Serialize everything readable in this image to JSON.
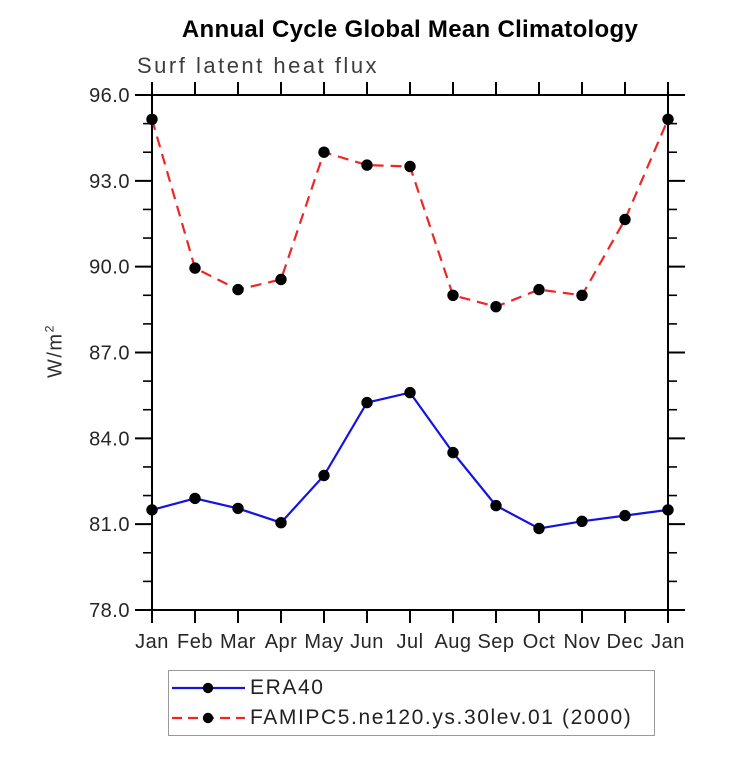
{
  "figure": {
    "title": "Annual Cycle Global Mean Climatology",
    "subtitle": "Surf latent heat flux",
    "ylabel_base": "W/m",
    "ylabel_exp": "2"
  },
  "chart_data": {
    "type": "line",
    "title": "Annual Cycle Global Mean Climatology",
    "subtitle": "Surf latent heat flux",
    "ylabel": "W/m^2",
    "xlabel": "",
    "categories": [
      "Jan",
      "Feb",
      "Mar",
      "Apr",
      "May",
      "Jun",
      "Jul",
      "Aug",
      "Sep",
      "Oct",
      "Nov",
      "Dec",
      "Jan"
    ],
    "ylim": [
      78.0,
      96.0
    ],
    "yticks_major": [
      78,
      81,
      84,
      87,
      90,
      93,
      96
    ],
    "ytick_labels": [
      "78.0",
      "81.0",
      "84.0",
      "87.0",
      "90.0",
      "93.0",
      "96.0"
    ],
    "yticks_minor": [
      79,
      80,
      82,
      83,
      85,
      86,
      88,
      89,
      91,
      92,
      94,
      95
    ],
    "grid": false,
    "legend_position": "below-plot-left",
    "series": [
      {
        "name": "ERA40",
        "color": "#1414dd",
        "line_style": "solid",
        "marker": "filled-circle",
        "marker_color": "#000000",
        "values": [
          81.5,
          81.9,
          81.55,
          81.05,
          82.7,
          85.25,
          85.6,
          83.5,
          81.65,
          80.85,
          81.1,
          81.3,
          81.5
        ]
      },
      {
        "name": "FAMIPC5.ne120.ys.30lev.01 (2000)",
        "color": "#ee2626",
        "line_style": "dashed",
        "marker": "filled-circle",
        "marker_color": "#000000",
        "values": [
          95.15,
          89.95,
          89.2,
          89.55,
          94.0,
          93.55,
          93.5,
          89.0,
          88.6,
          89.2,
          89.0,
          91.65,
          95.15
        ]
      }
    ]
  },
  "colors": {
    "background": "#ffffff",
    "frame": "#000000",
    "title_text": "#000000",
    "subtitle_text": "#3d3d3d",
    "tick_text": "#262626",
    "legend_border": "#9a9a9a"
  }
}
